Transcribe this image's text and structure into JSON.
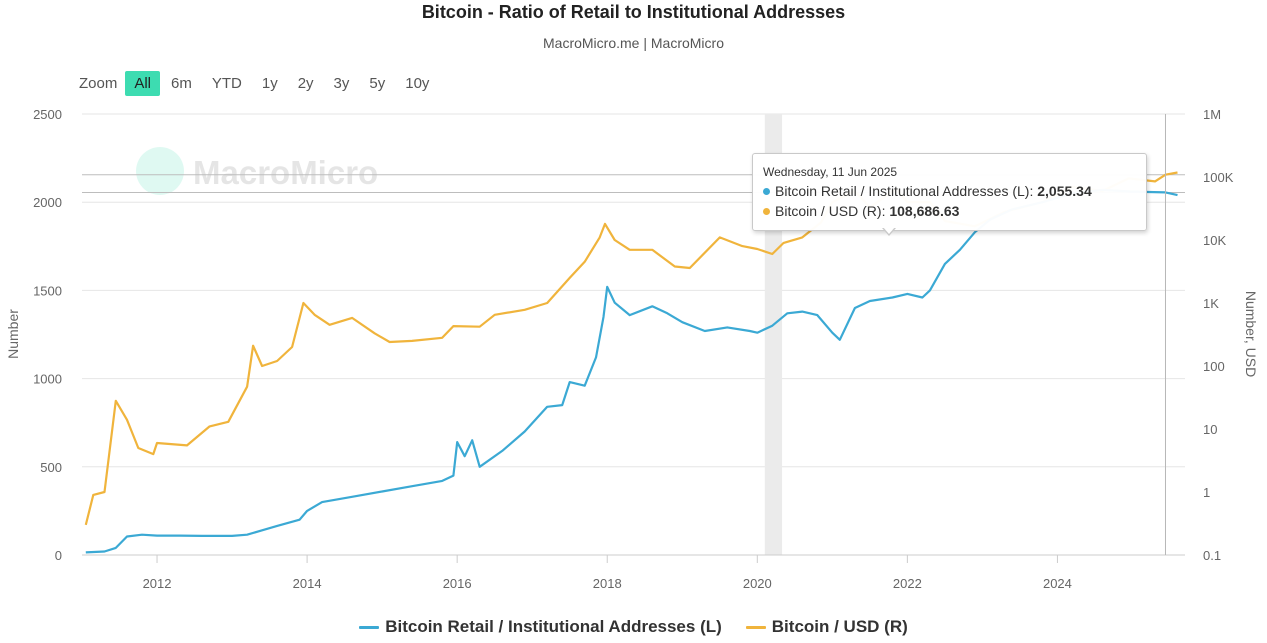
{
  "title": "Bitcoin - Ratio of Retail to Institutional Addresses",
  "subtitle": "MacroMicro.me | MacroMicro",
  "watermark": "MacroMicro",
  "zoom": {
    "label": "Zoom",
    "buttons": [
      "All",
      "6m",
      "YTD",
      "1y",
      "2y",
      "3y",
      "5y",
      "10y"
    ],
    "active": "All"
  },
  "tooltip": {
    "date": "Wednesday, 11 Jun 2025",
    "rows": [
      {
        "label": "Bitcoin Retail / Institutional Addresses (L):",
        "value": "2,055.34",
        "color": "#3ba9d4"
      },
      {
        "label": "Bitcoin / USD (R):",
        "value": "108,686.63",
        "color": "#f0b43c"
      }
    ]
  },
  "chart_data": {
    "type": "line",
    "left_axis": {
      "label": "Number",
      "min": 0,
      "max": 2500,
      "ticks": [
        0,
        500,
        1000,
        1500,
        2000,
        2500
      ]
    },
    "right_axis": {
      "label": "Number, USD",
      "scale": "log",
      "min": 0.1,
      "max": 1000000,
      "tick_labels": [
        "0.1",
        "1",
        "10",
        "100",
        "1K",
        "10K",
        "100K",
        "1M"
      ],
      "tick_values": [
        0.1,
        1,
        10,
        100,
        1000,
        10000,
        100000,
        1000000
      ]
    },
    "x_axis": {
      "min": 2011.0,
      "max": 2025.7,
      "tick_values": [
        2012,
        2014,
        2016,
        2018,
        2020,
        2022,
        2024
      ],
      "tick_labels": [
        "2012",
        "2014",
        "2016",
        "2018",
        "2020",
        "2022",
        "2024"
      ]
    },
    "shaded_band": {
      "from": 2020.1,
      "to": 2020.33
    },
    "crosshair_x": 2025.44,
    "reference_lines": [
      {
        "axis": "left",
        "value": 2055.34
      },
      {
        "axis": "right",
        "value": 108686.63
      }
    ],
    "legend_position": "bottom-center",
    "series": [
      {
        "name": "Bitcoin Retail / Institutional Addresses (L)",
        "axis": "left",
        "color": "#3ba9d4",
        "points": [
          [
            2011.05,
            15
          ],
          [
            2011.3,
            20
          ],
          [
            2011.45,
            40
          ],
          [
            2011.6,
            105
          ],
          [
            2011.8,
            115
          ],
          [
            2012.0,
            110
          ],
          [
            2012.3,
            110
          ],
          [
            2012.6,
            108
          ],
          [
            2013.0,
            108
          ],
          [
            2013.2,
            115
          ],
          [
            2013.4,
            140
          ],
          [
            2013.6,
            165
          ],
          [
            2013.9,
            200
          ],
          [
            2014.0,
            250
          ],
          [
            2014.2,
            300
          ],
          [
            2014.6,
            330
          ],
          [
            2015.0,
            360
          ],
          [
            2015.4,
            390
          ],
          [
            2015.8,
            420
          ],
          [
            2015.95,
            450
          ],
          [
            2016.0,
            640
          ],
          [
            2016.1,
            560
          ],
          [
            2016.2,
            650
          ],
          [
            2016.3,
            500
          ],
          [
            2016.6,
            590
          ],
          [
            2016.9,
            700
          ],
          [
            2017.2,
            840
          ],
          [
            2017.4,
            850
          ],
          [
            2017.5,
            980
          ],
          [
            2017.7,
            960
          ],
          [
            2017.85,
            1120
          ],
          [
            2017.95,
            1350
          ],
          [
            2018.0,
            1520
          ],
          [
            2018.1,
            1430
          ],
          [
            2018.3,
            1360
          ],
          [
            2018.6,
            1410
          ],
          [
            2018.8,
            1370
          ],
          [
            2019.0,
            1320
          ],
          [
            2019.3,
            1270
          ],
          [
            2019.6,
            1290
          ],
          [
            2019.9,
            1270
          ],
          [
            2020.0,
            1260
          ],
          [
            2020.2,
            1300
          ],
          [
            2020.4,
            1370
          ],
          [
            2020.6,
            1380
          ],
          [
            2020.8,
            1360
          ],
          [
            2021.0,
            1260
          ],
          [
            2021.1,
            1220
          ],
          [
            2021.3,
            1400
          ],
          [
            2021.5,
            1440
          ],
          [
            2021.8,
            1460
          ],
          [
            2022.0,
            1480
          ],
          [
            2022.2,
            1460
          ],
          [
            2022.3,
            1500
          ],
          [
            2022.5,
            1650
          ],
          [
            2022.7,
            1730
          ],
          [
            2022.9,
            1830
          ],
          [
            2023.1,
            1900
          ],
          [
            2023.4,
            1960
          ],
          [
            2023.8,
            2000
          ],
          [
            2024.2,
            2050
          ],
          [
            2024.6,
            2070
          ],
          [
            2025.0,
            2060
          ],
          [
            2025.44,
            2055.34
          ],
          [
            2025.6,
            2040
          ]
        ]
      },
      {
        "name": "Bitcoin / USD (R)",
        "axis": "right",
        "color": "#f0b43c",
        "points": [
          [
            2011.05,
            0.3
          ],
          [
            2011.15,
            0.9
          ],
          [
            2011.3,
            1.0
          ],
          [
            2011.45,
            28
          ],
          [
            2011.6,
            14
          ],
          [
            2011.75,
            5
          ],
          [
            2011.95,
            4
          ],
          [
            2012.0,
            6
          ],
          [
            2012.4,
            5.5
          ],
          [
            2012.7,
            11
          ],
          [
            2012.95,
            13
          ],
          [
            2013.2,
            47
          ],
          [
            2013.28,
            210
          ],
          [
            2013.4,
            100
          ],
          [
            2013.6,
            120
          ],
          [
            2013.8,
            200
          ],
          [
            2013.95,
            1000
          ],
          [
            2014.1,
            650
          ],
          [
            2014.3,
            450
          ],
          [
            2014.6,
            580
          ],
          [
            2014.9,
            330
          ],
          [
            2015.1,
            240
          ],
          [
            2015.4,
            250
          ],
          [
            2015.8,
            280
          ],
          [
            2015.95,
            430
          ],
          [
            2016.3,
            420
          ],
          [
            2016.5,
            650
          ],
          [
            2016.9,
            780
          ],
          [
            2017.2,
            1000
          ],
          [
            2017.5,
            2500
          ],
          [
            2017.7,
            4500
          ],
          [
            2017.9,
            11000
          ],
          [
            2017.97,
            18000
          ],
          [
            2018.1,
            10000
          ],
          [
            2018.3,
            7000
          ],
          [
            2018.6,
            7000
          ],
          [
            2018.9,
            3800
          ],
          [
            2019.1,
            3600
          ],
          [
            2019.5,
            11000
          ],
          [
            2019.8,
            8000
          ],
          [
            2020.0,
            7200
          ],
          [
            2020.2,
            6000
          ],
          [
            2020.35,
            9000
          ],
          [
            2020.6,
            11000
          ],
          [
            2020.85,
            19000
          ],
          [
            2021.0,
            40000
          ],
          [
            2021.3,
            60000
          ],
          [
            2021.5,
            33000
          ],
          [
            2021.85,
            65000
          ],
          [
            2022.0,
            40000
          ],
          [
            2022.3,
            40000
          ],
          [
            2022.5,
            20000
          ],
          [
            2022.9,
            16500
          ],
          [
            2023.3,
            28000
          ],
          [
            2023.8,
            40000
          ],
          [
            2024.2,
            70000
          ],
          [
            2024.6,
            60000
          ],
          [
            2024.95,
            95000
          ],
          [
            2025.3,
            85000
          ],
          [
            2025.44,
            108686.63
          ],
          [
            2025.6,
            118000
          ]
        ]
      }
    ]
  }
}
